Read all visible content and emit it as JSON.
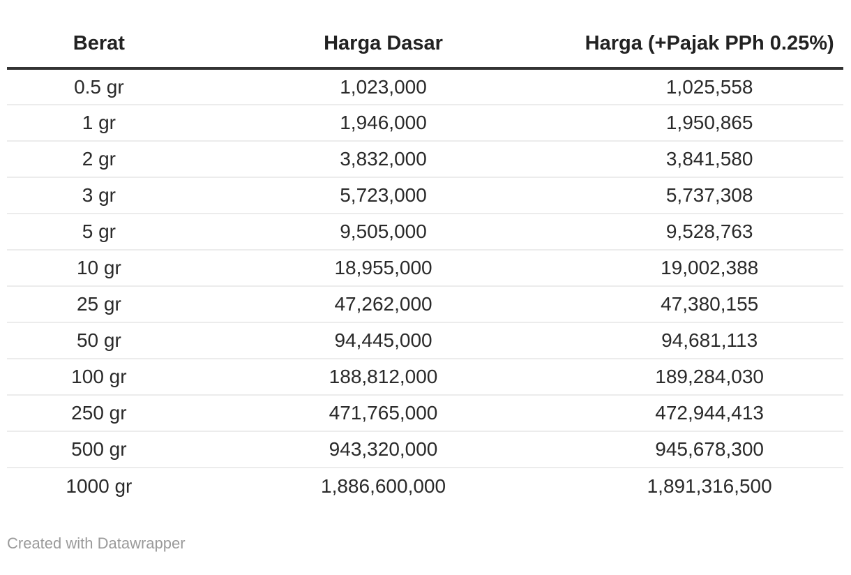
{
  "chart_data": {
    "type": "table",
    "columns": [
      "Berat",
      "Harga Dasar",
      "Harga (+Pajak PPh 0.25%)"
    ],
    "rows": [
      [
        "0.5 gr",
        "1,023,000",
        "1,025,558"
      ],
      [
        "1 gr",
        "1,946,000",
        "1,950,865"
      ],
      [
        "2 gr",
        "3,832,000",
        "3,841,580"
      ],
      [
        "3 gr",
        "5,723,000",
        "5,737,308"
      ],
      [
        "5 gr",
        "9,505,000",
        "9,528,763"
      ],
      [
        "10 gr",
        "18,955,000",
        "19,002,388"
      ],
      [
        "25 gr",
        "47,262,000",
        "47,380,155"
      ],
      [
        "50 gr",
        "94,445,000",
        "94,681,113"
      ],
      [
        "100 gr",
        "188,812,000",
        "189,284,030"
      ],
      [
        "250 gr",
        "471,765,000",
        "472,944,413"
      ],
      [
        "500 gr",
        "943,320,000",
        "945,678,300"
      ],
      [
        "1000 gr",
        "1,886,600,000",
        "1,891,316,500"
      ]
    ]
  },
  "footer": {
    "credit": "Created with Datawrapper"
  },
  "colors": {
    "background": "#ffffff",
    "header_rule": "#333333",
    "row_divider": "#ececec",
    "text": "#2a2a2a",
    "header_text": "#222222",
    "credit_text": "#9a9a9a"
  }
}
